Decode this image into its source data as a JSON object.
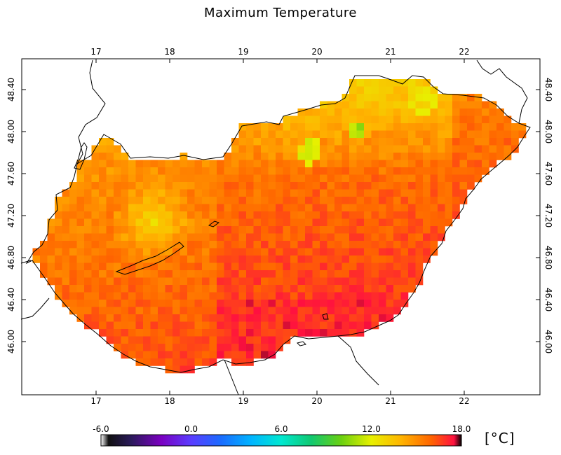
{
  "title": "Maximum Temperature",
  "units": "[°C]",
  "lon_ticks": [
    "17",
    "18",
    "19",
    "20",
    "21",
    "22"
  ],
  "lat_ticks": [
    "48.40",
    "48.00",
    "47.60",
    "47.20",
    "46.80",
    "46.40",
    "46.00"
  ],
  "colorbar": {
    "labels": [
      "-6.0",
      "0.0",
      "6.0",
      "12.0",
      "18.0"
    ],
    "min": -6,
    "max": 18,
    "stops": [
      {
        "v": -6,
        "c": "#ffffff"
      },
      {
        "v": -5.5,
        "c": "#101010"
      },
      {
        "v": -4,
        "c": "#2a1a5a"
      },
      {
        "v": -2,
        "c": "#7a00c0"
      },
      {
        "v": 0,
        "c": "#5a3cff"
      },
      {
        "v": 2,
        "c": "#1a6cff"
      },
      {
        "v": 4,
        "c": "#00b4ff"
      },
      {
        "v": 6,
        "c": "#00e8d0"
      },
      {
        "v": 8,
        "c": "#10c870"
      },
      {
        "v": 10,
        "c": "#6ad010"
      },
      {
        "v": 12,
        "c": "#e8f000"
      },
      {
        "v": 14,
        "c": "#ffb400"
      },
      {
        "v": 16,
        "c": "#ff6400"
      },
      {
        "v": 17.5,
        "c": "#ff1040"
      },
      {
        "v": 18,
        "c": "#000000"
      }
    ]
  },
  "chart_data": {
    "type": "heatmap",
    "variable": "Maximum Temperature",
    "units": "°C",
    "lon_range": [
      16.0,
      23.0
    ],
    "lat_range": [
      45.6,
      48.6
    ],
    "value_range": [
      -6,
      18
    ],
    "approx_field": {
      "southeast_great_plain": 17.0,
      "central_plain": 16.0,
      "transdanubia_west": 15.0,
      "bakony_hills": 13.5,
      "north_hills": 14.0,
      "matra_bukk_peaks": 11.0
    }
  }
}
